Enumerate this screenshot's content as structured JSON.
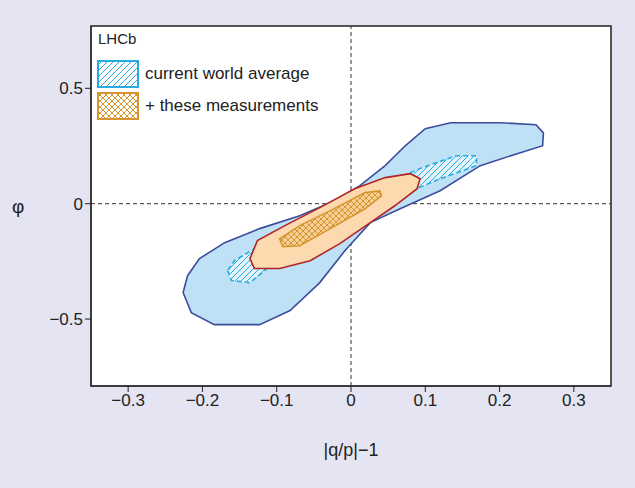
{
  "chart_data": {
    "type": "contour",
    "annotation": "LHCb",
    "x_label": "|q/p|−1",
    "y_label": "φ",
    "xlim": [
      -0.35,
      0.35
    ],
    "ylim": [
      -0.79,
      0.77
    ],
    "xticks": [
      {
        "value": -0.3,
        "label": "−0.3"
      },
      {
        "value": -0.2,
        "label": "−0.2"
      },
      {
        "value": -0.1,
        "label": "−0.1"
      },
      0,
      0.1,
      0.2,
      0.3
    ],
    "yticks": [
      {
        "value": -0.5,
        "label": "−0.5"
      },
      0,
      0.5
    ],
    "reference_lines": [
      {
        "axis": "x",
        "value": 0
      },
      {
        "axis": "y",
        "value": 0
      }
    ],
    "legend": "upper left",
    "series": [
      {
        "name": "current world average",
        "color": "#29abe2",
        "outer": [
          [
            -0.226,
            -0.385
          ],
          [
            -0.215,
            -0.472
          ],
          [
            -0.184,
            -0.524
          ],
          [
            -0.123,
            -0.524
          ],
          [
            -0.082,
            -0.463
          ],
          [
            -0.042,
            -0.342
          ],
          [
            -0.008,
            -0.203
          ],
          [
            0.026,
            -0.082
          ],
          [
            0.066,
            -0.022
          ],
          [
            0.12,
            0.056
          ],
          [
            0.174,
            0.165
          ],
          [
            0.228,
            0.221
          ],
          [
            0.258,
            0.251
          ],
          [
            0.259,
            0.307
          ],
          [
            0.249,
            0.342
          ],
          [
            0.201,
            0.351
          ],
          [
            0.134,
            0.351
          ],
          [
            0.1,
            0.325
          ],
          [
            0.073,
            0.251
          ],
          [
            0.046,
            0.165
          ],
          [
            0.012,
            0.078
          ],
          [
            -0.022,
            0.013
          ],
          [
            -0.069,
            -0.052
          ],
          [
            -0.123,
            -0.108
          ],
          [
            -0.17,
            -0.169
          ],
          [
            -0.204,
            -0.238
          ],
          [
            -0.22,
            -0.312
          ]
        ],
        "inner": [
          [
            -0.166,
            -0.29
          ],
          [
            -0.161,
            -0.333
          ],
          [
            -0.136,
            -0.342
          ],
          [
            -0.103,
            -0.255
          ],
          [
            -0.042,
            -0.16
          ],
          [
            0.012,
            -0.052
          ],
          [
            0.066,
            0.035
          ],
          [
            0.12,
            0.108
          ],
          [
            0.169,
            0.165
          ],
          [
            0.169,
            0.208
          ],
          [
            0.141,
            0.208
          ],
          [
            0.093,
            0.152
          ],
          [
            0.039,
            0.078
          ],
          [
            -0.015,
            -0.009
          ],
          [
            -0.069,
            -0.095
          ],
          [
            -0.123,
            -0.182
          ],
          [
            -0.157,
            -0.247
          ]
        ]
      },
      {
        "name": "+ these measurements",
        "color": "#d8952f",
        "outer": [
          [
            -0.136,
            -0.238
          ],
          [
            -0.126,
            -0.16
          ],
          [
            -0.089,
            -0.095
          ],
          [
            -0.042,
            -0.017
          ],
          [
            0.005,
            0.065
          ],
          [
            0.046,
            0.113
          ],
          [
            0.08,
            0.13
          ],
          [
            0.093,
            0.108
          ],
          [
            0.089,
            0.065
          ],
          [
            0.059,
            -0.009
          ],
          [
            0.026,
            -0.082
          ],
          [
            -0.015,
            -0.173
          ],
          [
            -0.055,
            -0.247
          ],
          [
            -0.096,
            -0.281
          ],
          [
            -0.13,
            -0.281
          ]
        ],
        "inner": [
          [
            -0.096,
            -0.152
          ],
          [
            -0.092,
            -0.186
          ],
          [
            -0.069,
            -0.182
          ],
          [
            -0.028,
            -0.108
          ],
          [
            0.019,
            -0.022
          ],
          [
            0.041,
            0.035
          ],
          [
            0.039,
            0.056
          ],
          [
            0.019,
            0.048
          ],
          [
            -0.028,
            -0.03
          ],
          [
            -0.069,
            -0.095
          ]
        ]
      }
    ]
  }
}
